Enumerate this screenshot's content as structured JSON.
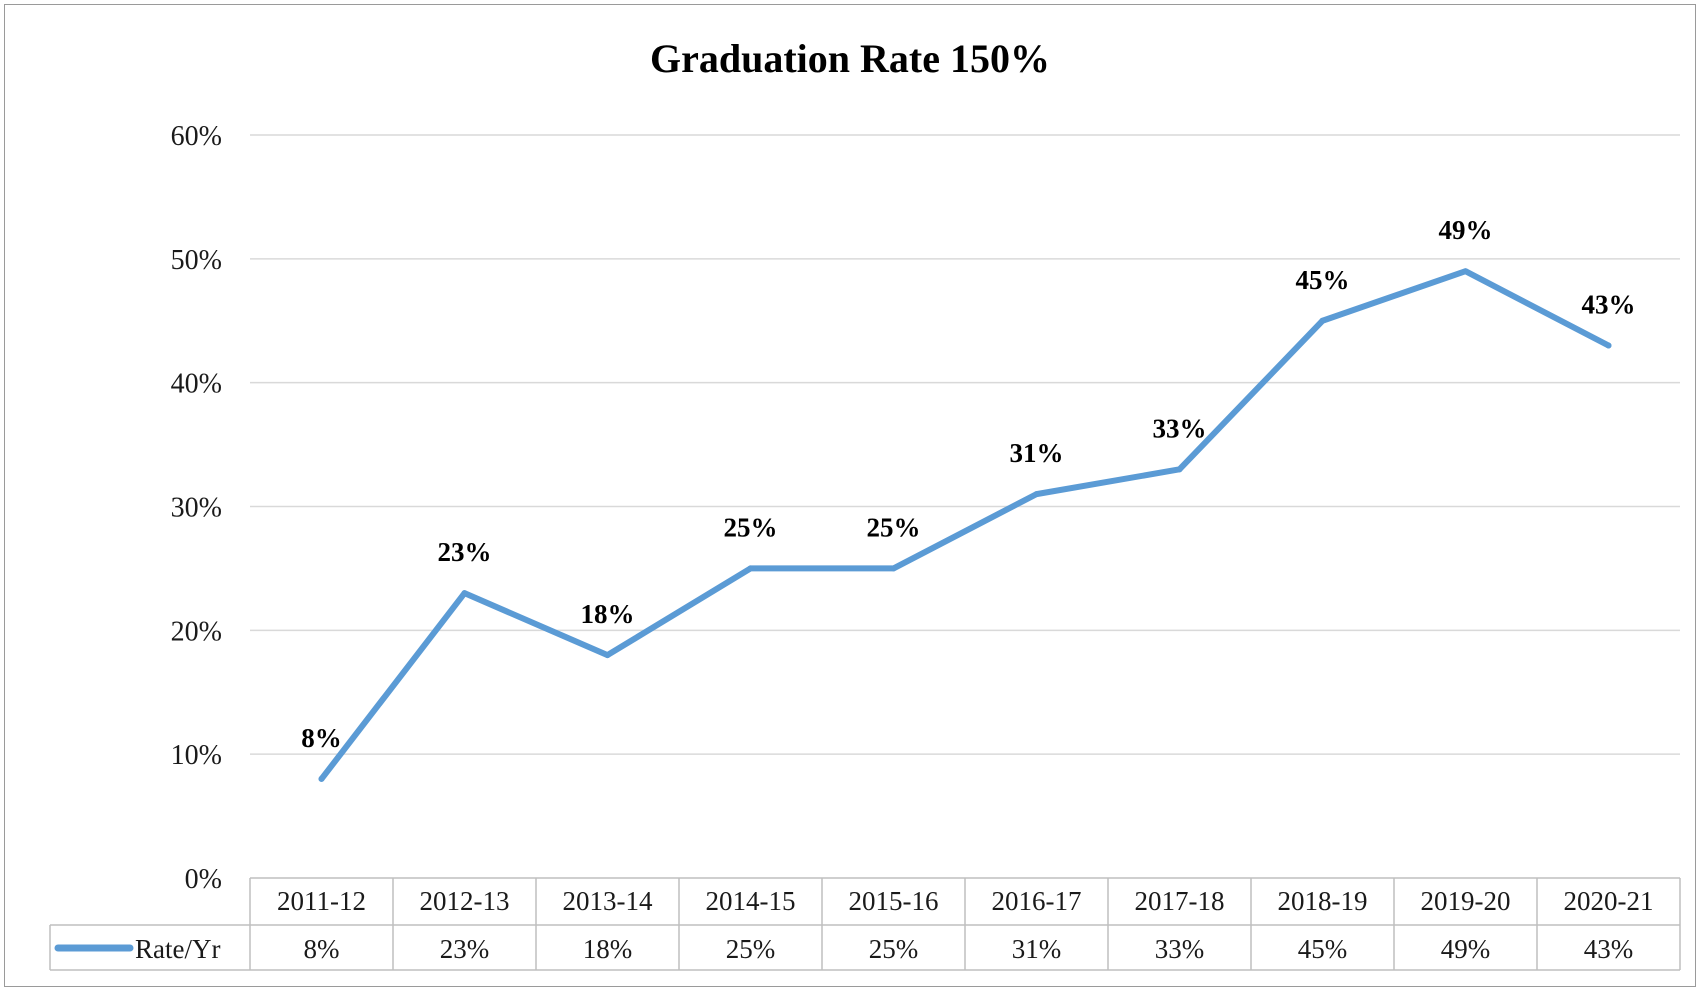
{
  "chart_data": {
    "type": "line",
    "title": "Graduation Rate 150%",
    "categories": [
      "2011-12",
      "2012-13",
      "2013-14",
      "2014-15",
      "2015-16",
      "2016-17",
      "2017-18",
      "2018-19",
      "2019-20",
      "2020-21"
    ],
    "series": [
      {
        "name": "Rate/Yr",
        "values": [
          8,
          23,
          18,
          25,
          25,
          31,
          33,
          45,
          49,
          43
        ],
        "data_labels": [
          "8%",
          "23%",
          "18%",
          "25%",
          "25%",
          "31%",
          "33%",
          "45%",
          "49%",
          "43%"
        ],
        "color": "#5b9bd5"
      }
    ],
    "ylim": [
      0,
      60
    ],
    "yticks": [
      0,
      10,
      20,
      30,
      40,
      50,
      60
    ],
    "ytick_labels": [
      "0%",
      "10%",
      "20%",
      "30%",
      "40%",
      "50%",
      "60%"
    ],
    "xlabel": "",
    "ylabel": "",
    "grid": true,
    "legend": "data-table",
    "data_table": true
  },
  "colors": {
    "line": "#5b9bd5",
    "grid": "#d9d9d9",
    "table_border": "#bfbfbf",
    "frame_border": "#9a9a9a"
  }
}
